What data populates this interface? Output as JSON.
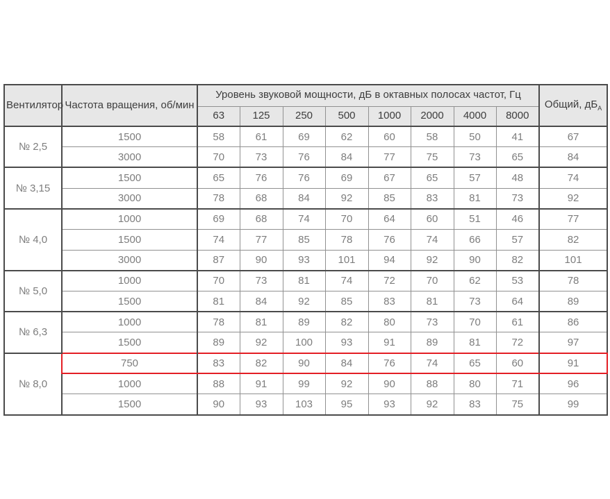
{
  "table": {
    "header": {
      "fan": "Вентилятор",
      "rpm": "Частота вращения, об/мин",
      "spl": "Уровень звуковой мощности, дБ в октавных полосах частот, Гц",
      "total": "Общий, дБ",
      "total_sub": "A"
    },
    "freq_columns": [
      "63",
      "125",
      "250",
      "500",
      "1000",
      "2000",
      "4000",
      "8000"
    ],
    "groups": [
      {
        "fan": "№ 2,5",
        "rows": [
          {
            "rpm": "1500",
            "values": [
              "58",
              "61",
              "69",
              "62",
              "60",
              "58",
              "50",
              "41"
            ],
            "total": "67"
          },
          {
            "rpm": "3000",
            "values": [
              "70",
              "73",
              "76",
              "84",
              "77",
              "75",
              "73",
              "65"
            ],
            "total": "84"
          }
        ]
      },
      {
        "fan": "№ 3,15",
        "rows": [
          {
            "rpm": "1500",
            "values": [
              "65",
              "76",
              "76",
              "69",
              "67",
              "65",
              "57",
              "48"
            ],
            "total": "74"
          },
          {
            "rpm": "3000",
            "values": [
              "78",
              "68",
              "84",
              "92",
              "85",
              "83",
              "81",
              "73"
            ],
            "total": "92"
          }
        ]
      },
      {
        "fan": "№ 4,0",
        "rows": [
          {
            "rpm": "1000",
            "values": [
              "69",
              "68",
              "74",
              "70",
              "64",
              "60",
              "51",
              "46"
            ],
            "total": "77"
          },
          {
            "rpm": "1500",
            "values": [
              "74",
              "77",
              "85",
              "78",
              "76",
              "74",
              "66",
              "57"
            ],
            "total": "82"
          },
          {
            "rpm": "3000",
            "values": [
              "87",
              "90",
              "93",
              "101",
              "94",
              "92",
              "90",
              "82"
            ],
            "total": "101"
          }
        ]
      },
      {
        "fan": "№ 5,0",
        "rows": [
          {
            "rpm": "1000",
            "values": [
              "70",
              "73",
              "81",
              "74",
              "72",
              "70",
              "62",
              "53"
            ],
            "total": "78"
          },
          {
            "rpm": "1500",
            "values": [
              "81",
              "84",
              "92",
              "85",
              "83",
              "81",
              "73",
              "64"
            ],
            "total": "89"
          }
        ]
      },
      {
        "fan": "№ 6,3",
        "rows": [
          {
            "rpm": "1000",
            "values": [
              "78",
              "81",
              "89",
              "82",
              "80",
              "73",
              "70",
              "61"
            ],
            "total": "86"
          },
          {
            "rpm": "1500",
            "values": [
              "89",
              "92",
              "100",
              "93",
              "91",
              "89",
              "81",
              "72"
            ],
            "total": "97"
          }
        ]
      },
      {
        "fan": "№ 8,0",
        "rows": [
          {
            "rpm": "750",
            "values": [
              "83",
              "82",
              "90",
              "84",
              "76",
              "74",
              "65",
              "60"
            ],
            "total": "91",
            "highlighted": true
          },
          {
            "rpm": "1000",
            "values": [
              "88",
              "91",
              "99",
              "92",
              "90",
              "88",
              "80",
              "71"
            ],
            "total": "96"
          },
          {
            "rpm": "1500",
            "values": [
              "90",
              "93",
              "103",
              "95",
              "93",
              "92",
              "83",
              "75"
            ],
            "total": "99"
          }
        ]
      }
    ],
    "colors": {
      "highlight_border": "#e31e24",
      "header_bg": "#e7e7e7",
      "header_text": "#3d3d3d",
      "data_text": "#7d7d7d",
      "grid_major": "#4a4a4a",
      "grid_minor": "#909090"
    }
  }
}
